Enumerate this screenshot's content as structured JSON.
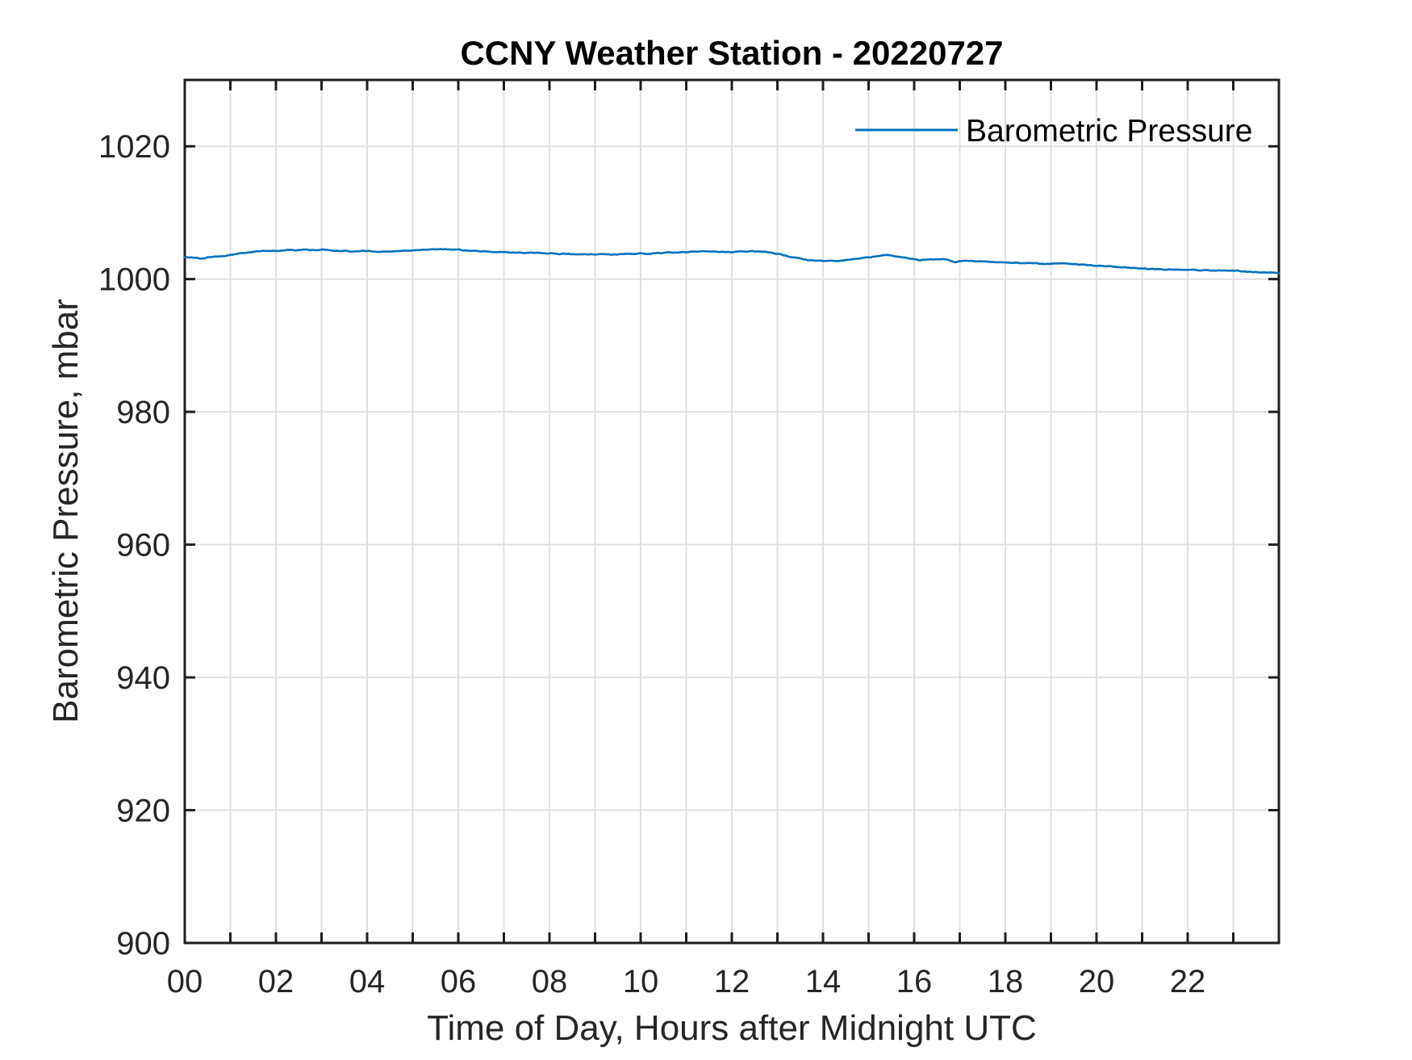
{
  "chart_data": {
    "type": "line",
    "title": "CCNY Weather Station - 20220727",
    "xlabel": "Time of Day, Hours after Midnight UTC",
    "ylabel": "Barometric Pressure, mbar",
    "xlim": [
      0,
      24
    ],
    "ylim": [
      900,
      1030
    ],
    "grid": true,
    "x_grid_step_hours": 1,
    "x_labeled_ticks": [
      0,
      2,
      4,
      6,
      8,
      10,
      12,
      14,
      16,
      18,
      20,
      22
    ],
    "x_tick_labels": [
      "00",
      "02",
      "04",
      "06",
      "08",
      "10",
      "12",
      "14",
      "16",
      "18",
      "20",
      "22"
    ],
    "y_ticks": [
      900,
      920,
      940,
      960,
      980,
      1000,
      1020
    ],
    "y_tick_labels": [
      "900",
      "920",
      "940",
      "960",
      "980",
      "1000",
      "1020"
    ],
    "legend": {
      "position": "top-right",
      "box": false,
      "entries": [
        {
          "label": "Barometric Pressure",
          "color": "#0072BD"
        }
      ]
    },
    "series": [
      {
        "name": "Barometric Pressure",
        "color": "#0072BD",
        "points": [
          [
            0.0,
            1003.3
          ],
          [
            0.15,
            1003.2
          ],
          [
            0.35,
            1003.1
          ],
          [
            0.6,
            1003.35
          ],
          [
            0.8,
            1003.5
          ],
          [
            1.0,
            1003.6
          ],
          [
            1.3,
            1003.9
          ],
          [
            1.6,
            1004.1
          ],
          [
            2.0,
            1004.3
          ],
          [
            2.3,
            1004.4
          ],
          [
            2.7,
            1004.35
          ],
          [
            3.0,
            1004.4
          ],
          [
            3.4,
            1004.3
          ],
          [
            3.8,
            1004.2
          ],
          [
            4.2,
            1004.15
          ],
          [
            4.6,
            1004.2
          ],
          [
            5.0,
            1004.3
          ],
          [
            5.3,
            1004.45
          ],
          [
            5.6,
            1004.5
          ],
          [
            5.9,
            1004.4
          ],
          [
            6.2,
            1004.3
          ],
          [
            6.6,
            1004.15
          ],
          [
            7.0,
            1004.0
          ],
          [
            7.5,
            1003.95
          ],
          [
            8.0,
            1003.85
          ],
          [
            8.5,
            1003.8
          ],
          [
            9.0,
            1003.7
          ],
          [
            9.5,
            1003.75
          ],
          [
            10.0,
            1003.85
          ],
          [
            10.5,
            1003.9
          ],
          [
            10.9,
            1004.05
          ],
          [
            11.3,
            1004.15
          ],
          [
            11.7,
            1004.1
          ],
          [
            12.0,
            1004.1
          ],
          [
            12.4,
            1004.2
          ],
          [
            12.7,
            1004.1
          ],
          [
            13.0,
            1003.85
          ],
          [
            13.3,
            1003.3
          ],
          [
            13.7,
            1002.85
          ],
          [
            14.0,
            1002.7
          ],
          [
            14.4,
            1002.8
          ],
          [
            14.8,
            1003.15
          ],
          [
            15.1,
            1003.4
          ],
          [
            15.4,
            1003.6
          ],
          [
            15.7,
            1003.4
          ],
          [
            15.95,
            1003.1
          ],
          [
            16.1,
            1002.9
          ],
          [
            16.4,
            1002.95
          ],
          [
            16.7,
            1003.05
          ],
          [
            16.9,
            1002.55
          ],
          [
            17.1,
            1002.8
          ],
          [
            17.4,
            1002.65
          ],
          [
            17.8,
            1002.55
          ],
          [
            18.2,
            1002.45
          ],
          [
            18.6,
            1002.35
          ],
          [
            19.0,
            1002.3
          ],
          [
            19.3,
            1002.35
          ],
          [
            19.6,
            1002.2
          ],
          [
            20.0,
            1002.0
          ],
          [
            20.5,
            1001.8
          ],
          [
            21.0,
            1001.6
          ],
          [
            21.5,
            1001.45
          ],
          [
            22.0,
            1001.4
          ],
          [
            22.5,
            1001.3
          ],
          [
            23.0,
            1001.25
          ],
          [
            23.5,
            1001.1
          ],
          [
            24.0,
            1000.9
          ]
        ]
      }
    ],
    "colors": {
      "line": "#0072BD",
      "grid": "#e0e0e0",
      "axis": "#1f1f1f",
      "tick_text": "#262626",
      "title_text": "#000000"
    }
  }
}
